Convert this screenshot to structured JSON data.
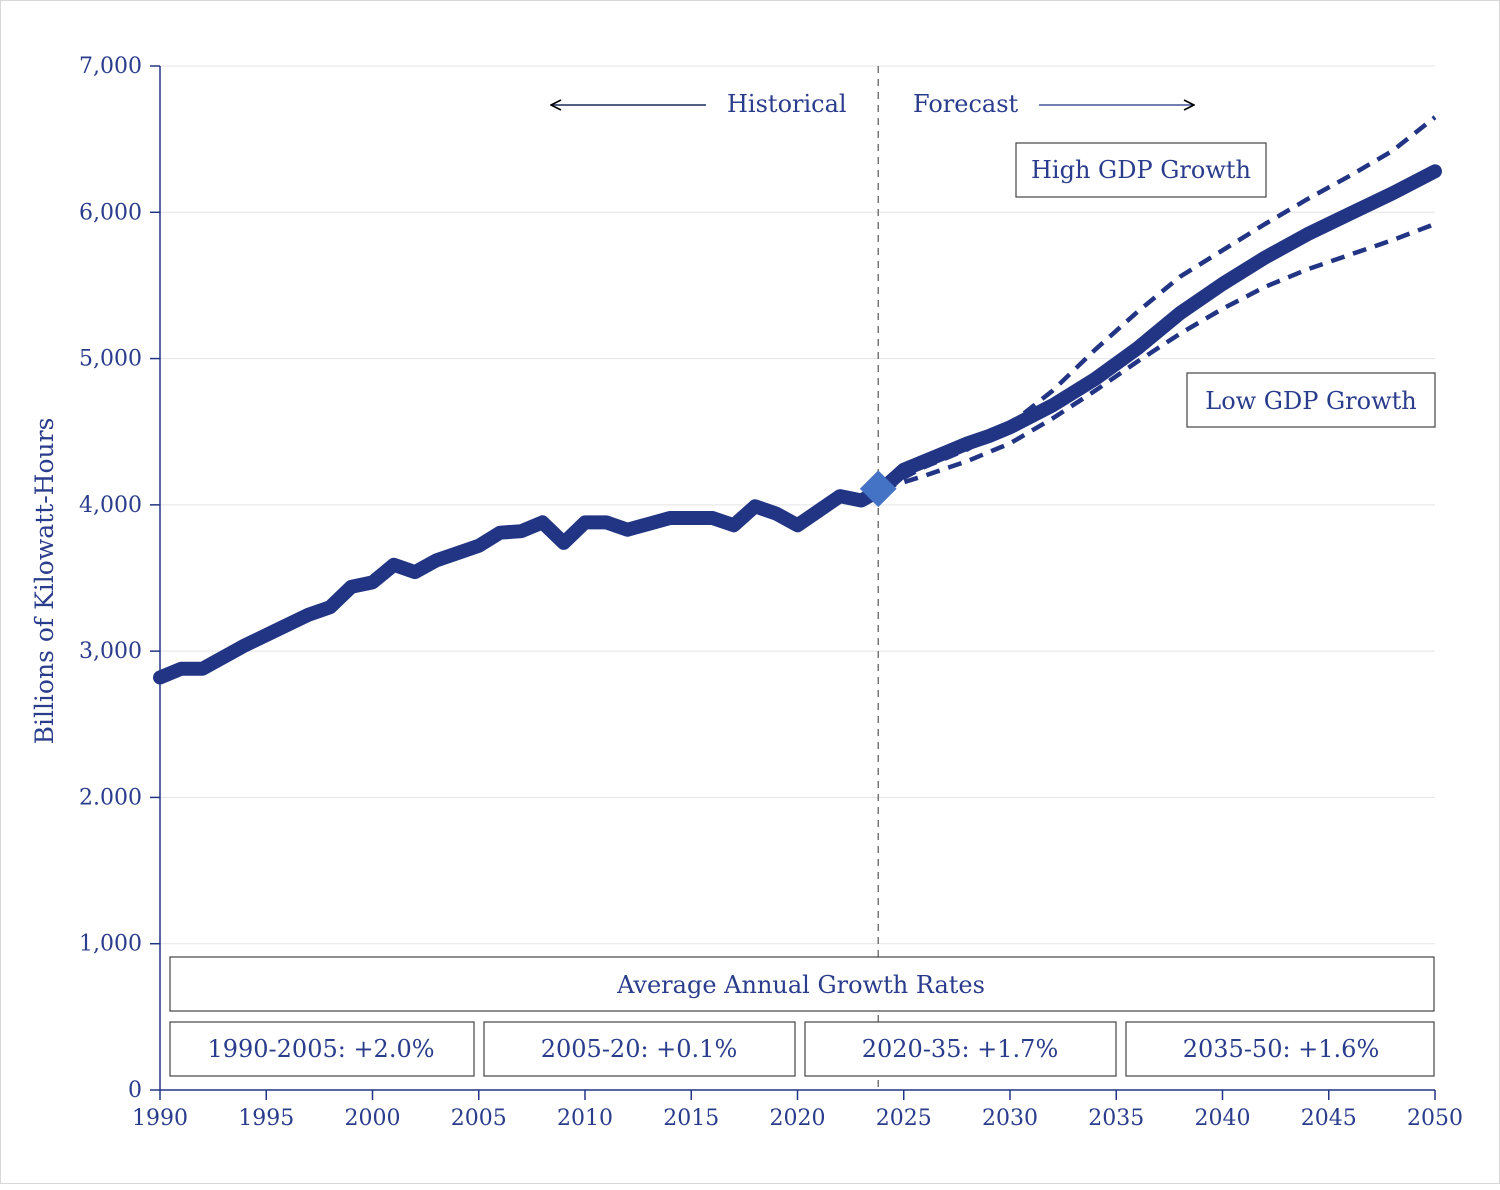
{
  "chart_data": {
    "type": "line",
    "title": "",
    "xlabel": "",
    "ylabel": "Billions of Kilowatt-Hours",
    "xlim": [
      1990,
      2050
    ],
    "ylim": [
      0,
      7000
    ],
    "x_ticks": [
      1990,
      1995,
      2000,
      2005,
      2010,
      2015,
      2020,
      2025,
      2030,
      2035,
      2040,
      2045,
      2050
    ],
    "x_tick_labels": [
      "1990",
      "1995",
      "2000",
      "2005",
      "2010",
      "2015",
      "2020",
      "2025",
      "2030",
      "2035",
      "2040",
      "2045",
      "2050"
    ],
    "y_ticks": [
      0,
      1000,
      2000,
      3000,
      4000,
      5000,
      6000,
      7000
    ],
    "y_tick_labels": [
      "0",
      "1,000",
      "2.000",
      "3,000",
      "4,000",
      "5,000",
      "6,000",
      "7,000"
    ],
    "grid": true,
    "divider_year": 2023.8,
    "historical_label": "Historical",
    "forecast_label": "Forecast",
    "series": [
      {
        "style": "solid-thick",
        "x": [
          1990,
          1991,
          1992,
          1993,
          1994,
          1995,
          1996,
          1997,
          1998,
          1999,
          2000,
          2001,
          2002,
          2003,
          2004,
          2005,
          2006,
          2007,
          2008,
          2009,
          2010,
          2011,
          2012,
          2013,
          2014,
          2015,
          2016,
          2017,
          2018,
          2019,
          2020,
          2021,
          2022,
          2023,
          2024,
          2025,
          2026,
          2027,
          2028,
          2029,
          2030,
          2032,
          2034,
          2036,
          2038,
          2040,
          2042,
          2044,
          2046,
          2048,
          2050
        ],
        "y": [
          2820,
          2880,
          2880,
          2960,
          3040,
          3110,
          3180,
          3250,
          3300,
          3440,
          3470,
          3590,
          3540,
          3620,
          3670,
          3720,
          3810,
          3820,
          3880,
          3740,
          3880,
          3880,
          3830,
          3870,
          3910,
          3910,
          3910,
          3860,
          3990,
          3940,
          3860,
          3960,
          4060,
          4030,
          4110,
          4240,
          4300,
          4360,
          4420,
          4470,
          4530,
          4680,
          4860,
          5070,
          5310,
          5510,
          5690,
          5850,
          5990,
          6130,
          6280
        ]
      },
      {
        "name": "High GDP Growth",
        "style": "dashed",
        "x": [
          2024,
          2026,
          2028,
          2030,
          2032,
          2034,
          2036,
          2038,
          2040,
          2042,
          2044,
          2046,
          2048,
          2050
        ],
        "y": [
          4110,
          4260,
          4380,
          4550,
          4780,
          5060,
          5320,
          5560,
          5740,
          5920,
          6090,
          6250,
          6420,
          6650
        ]
      },
      {
        "name": "Low GDP Growth",
        "style": "dashed",
        "x": [
          2024,
          2026,
          2028,
          2030,
          2032,
          2034,
          2036,
          2038,
          2040,
          2042,
          2044,
          2046,
          2048,
          2050
        ],
        "y": [
          4110,
          4200,
          4300,
          4420,
          4590,
          4780,
          4980,
          5170,
          5340,
          5490,
          5610,
          5710,
          5810,
          5920
        ]
      }
    ],
    "series_labels": [
      "High GDP Growth",
      "Low GDP Growth"
    ],
    "growth_rates": {
      "title": "Average Annual Growth Rates",
      "periods": [
        "1990-2005: +2.0%",
        "2005-20: +0.1%",
        "2020-35: +1.7%",
        "2035-50: +1.6%"
      ]
    }
  },
  "colors": {
    "line": "#223585",
    "text": "#2a3c8c",
    "marker": "#4472c4",
    "grid": "#e3e3e3",
    "divider": "#777777",
    "arrow_left": "#1d2a5a"
  }
}
